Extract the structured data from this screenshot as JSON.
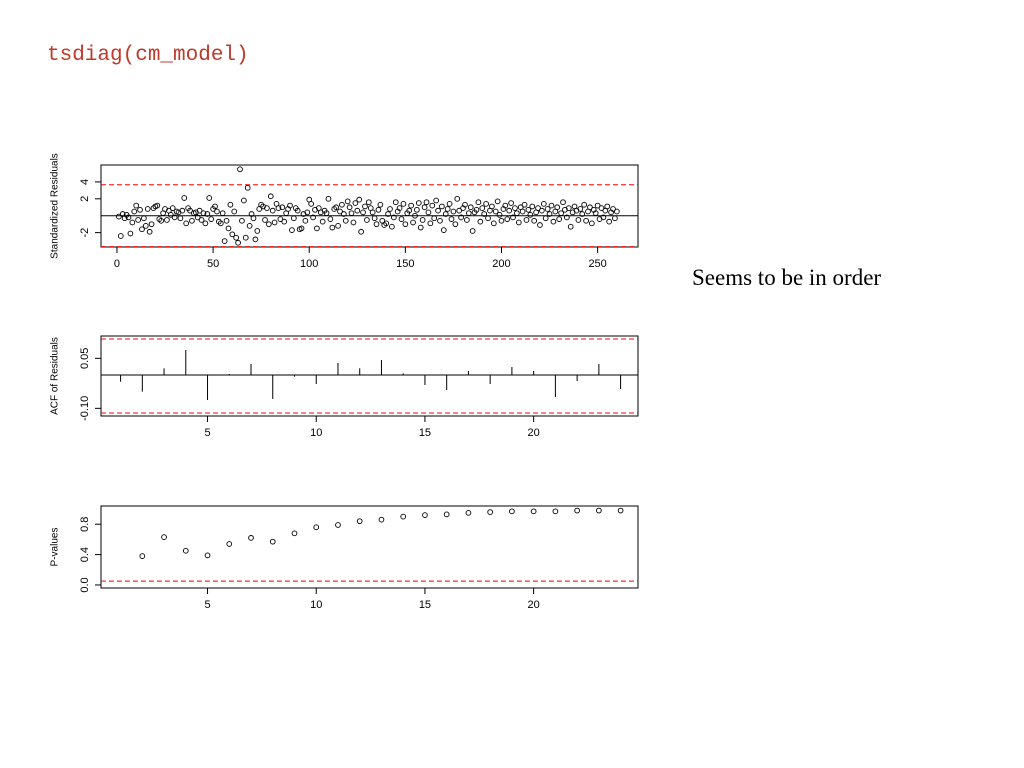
{
  "title": "tsdiag(cm_model)",
  "note": "Seems to be in order",
  "chart_data": [
    {
      "type": "scatter",
      "ylabel": "Standardized Residuals",
      "x": [
        1,
        2,
        3,
        4,
        5,
        6,
        7,
        8,
        9,
        10,
        11,
        12,
        13,
        14,
        15,
        16,
        17,
        18,
        19,
        20,
        21,
        22,
        23,
        24,
        25,
        26,
        27,
        28,
        29,
        30,
        31,
        32,
        33,
        34,
        35,
        36,
        37,
        38,
        39,
        40,
        41,
        42,
        43,
        44,
        45,
        46,
        47,
        48,
        49,
        50,
        51,
        52,
        53,
        54,
        55,
        56,
        57,
        58,
        59,
        60,
        61,
        62,
        63,
        64,
        65,
        66,
        67,
        68,
        69,
        70,
        71,
        72,
        73,
        74,
        75,
        76,
        77,
        78,
        79,
        80,
        81,
        82,
        83,
        84,
        85,
        86,
        87,
        88,
        89,
        90,
        91,
        92,
        93,
        94,
        95,
        96,
        97,
        98,
        99,
        100,
        101,
        102,
        103,
        104,
        105,
        106,
        107,
        108,
        109,
        110,
        111,
        112,
        113,
        114,
        115,
        116,
        117,
        118,
        119,
        120,
        121,
        122,
        123,
        124,
        125,
        126,
        127,
        128,
        129,
        130,
        131,
        132,
        133,
        134,
        135,
        136,
        137,
        138,
        139,
        140,
        141,
        142,
        143,
        144,
        145,
        146,
        147,
        148,
        149,
        150,
        151,
        152,
        153,
        154,
        155,
        156,
        157,
        158,
        159,
        160,
        161,
        162,
        163,
        164,
        165,
        166,
        167,
        168,
        169,
        170,
        171,
        172,
        173,
        174,
        175,
        176,
        177,
        178,
        179,
        180,
        181,
        182,
        183,
        184,
        185,
        186,
        187,
        188,
        189,
        190,
        191,
        192,
        193,
        194,
        195,
        196,
        197,
        198,
        199,
        200,
        201,
        202,
        203,
        204,
        205,
        206,
        207,
        208,
        209,
        210,
        211,
        212,
        213,
        214,
        215,
        216,
        217,
        218,
        219,
        220,
        221,
        222,
        223,
        224,
        225,
        226,
        227,
        228,
        229,
        230,
        231,
        232,
        233,
        234,
        235,
        236,
        237,
        238,
        239,
        240,
        241,
        242,
        243,
        244,
        245,
        246,
        247,
        248,
        249,
        250,
        251,
        252,
        253,
        254,
        255,
        256,
        257,
        258,
        259,
        260
      ],
      "values": [
        -0.1,
        -2.4,
        0.2,
        -0.3,
        0.1,
        -0.2,
        -2.1,
        -0.8,
        0.5,
        1.2,
        -0.5,
        0.7,
        -1.6,
        -0.3,
        -1.2,
        0.8,
        -1.9,
        -1.0,
        0.9,
        1.1,
        1.2,
        -0.4,
        -0.6,
        0.3,
        0.8,
        -0.5,
        0.6,
        0.1,
        0.9,
        -0.2,
        0.5,
        0.4,
        -0.3,
        0.6,
        2.1,
        -0.9,
        0.9,
        0.6,
        -0.6,
        0.3,
        0.4,
        -0.2,
        0.6,
        -0.5,
        0.3,
        -0.9,
        0.2,
        2.1,
        -0.4,
        0.8,
        1.1,
        0.5,
        -0.7,
        -0.9,
        0.3,
        -3.0,
        -0.6,
        -1.5,
        1.3,
        -2.2,
        0.5,
        -2.6,
        -3.2,
        5.5,
        -0.6,
        1.8,
        -2.6,
        3.3,
        -1.2,
        0.2,
        -0.3,
        -2.8,
        -1.8,
        0.8,
        1.3,
        1.1,
        -0.5,
        0.9,
        -1.0,
        2.3,
        0.6,
        -0.8,
        1.4,
        0.9,
        -0.4,
        1.0,
        -0.7,
        0.3,
        0.8,
        1.2,
        -1.7,
        -0.3,
        0.9,
        0.6,
        -1.6,
        -1.5,
        0.2,
        -0.6,
        0.4,
        1.9,
        1.4,
        -0.2,
        0.7,
        -1.5,
        0.9,
        0.4,
        -0.7,
        0.6,
        0.3,
        2.0,
        -0.4,
        -1.4,
        0.8,
        1.0,
        -1.2,
        0.5,
        1.3,
        0.2,
        -0.6,
        1.7,
        1.0,
        0.3,
        -0.8,
        1.5,
        0.6,
        1.9,
        -1.9,
        0.4,
        1.1,
        -0.5,
        1.6,
        0.9,
        0.4,
        -0.3,
        -1.0,
        0.7,
        1.3,
        -0.6,
        -1.1,
        -0.9,
        0.2,
        0.8,
        -1.3,
        -0.2,
        1.6,
        0.5,
        0.9,
        -0.4,
        1.4,
        -1.0,
        0.3,
        0.6,
        1.2,
        -0.8,
        0.0,
        0.7,
        1.5,
        -1.4,
        -0.5,
        1.0,
        1.6,
        0.4,
        -0.9,
        1.2,
        -0.3,
        1.8,
        0.6,
        -0.6,
        1.1,
        -1.7,
        0.2,
        0.8,
        1.4,
        -0.4,
        0.5,
        -1.0,
        2.0,
        0.6,
        -0.2,
        0.9,
        1.3,
        -0.5,
        0.3,
        1.0,
        -1.8,
        0.4,
        0.7,
        1.6,
        -0.7,
        0.9,
        0.2,
        1.4,
        -0.3,
        0.6,
        1.1,
        -0.9,
        0.5,
        1.7,
        0.1,
        -0.6,
        0.8,
        1.2,
        -0.4,
        0.6,
        1.5,
        -0.2,
        0.9,
        0.3,
        -0.8,
        1.0,
        0.5,
        1.3,
        -0.5,
        0.7,
        0.1,
        1.1,
        -0.6,
        0.4,
        0.9,
        -1.1,
        0.6,
        1.4,
        -0.3,
        0.8,
        0.2,
        1.2,
        -0.7,
        0.5,
        1.0,
        -0.4,
        0.3,
        1.6,
        0.7,
        -0.2,
        0.9,
        -1.3,
        0.4,
        1.1,
        0.6,
        -0.5,
        0.8,
        0.2,
        1.3,
        -0.6,
        0.5,
        1.0,
        -0.9,
        0.7,
        0.3,
        1.2,
        -0.4,
        0.9,
        -0.2,
        0.6,
        1.1,
        -0.7,
        0.4,
        0.8,
        -0.3,
        0.5
      ],
      "xlim": [
        -8.3,
        271
      ],
      "xticks": [
        0,
        50,
        100,
        150,
        200,
        250
      ],
      "ylim": [
        -3.7,
        6.0
      ],
      "yticks": [
        -2,
        2,
        4
      ],
      "zero_line": 0,
      "ref_lines": [
        3.66,
        -3.66
      ],
      "ref_color": "#ff0000",
      "color": "#000000"
    },
    {
      "type": "stem",
      "ylabel": "ACF of Residuals",
      "x": [
        1,
        2,
        3,
        4,
        5,
        6,
        7,
        8,
        9,
        10,
        11,
        12,
        13,
        14,
        15,
        16,
        17,
        18,
        19,
        20,
        21,
        22,
        23,
        24
      ],
      "values": [
        -0.02,
        -0.05,
        0.02,
        0.075,
        -0.075,
        0.003,
        0.033,
        -0.072,
        -0.005,
        -0.027,
        0.036,
        0.02,
        0.045,
        0.005,
        -0.03,
        -0.045,
        0.012,
        -0.027,
        0.024,
        0.012,
        -0.066,
        -0.018,
        0.033,
        -0.042
      ],
      "xlim": [
        0.1,
        24.8
      ],
      "xticks": [
        5,
        10,
        15,
        20
      ],
      "ylim": [
        -0.123,
        0.117
      ],
      "yticks": [
        {
          "value": -0.1,
          "label": "-0.10"
        },
        {
          "value": 0.05,
          "label": "0.05"
        }
      ],
      "zero_line": 0,
      "ref_lines": [
        0.108,
        -0.114
      ],
      "ref_color": "#ff0000",
      "color": "#000000"
    },
    {
      "type": "scatter",
      "ylabel": "P-values",
      "x": [
        2,
        3,
        4,
        5,
        6,
        7,
        8,
        9,
        10,
        11,
        12,
        13,
        14,
        15,
        16,
        17,
        18,
        19,
        20,
        21,
        22,
        23,
        24
      ],
      "values": [
        0.38,
        0.63,
        0.45,
        0.39,
        0.54,
        0.62,
        0.57,
        0.68,
        0.76,
        0.79,
        0.84,
        0.86,
        0.9,
        0.92,
        0.93,
        0.95,
        0.96,
        0.97,
        0.97,
        0.97,
        0.98,
        0.98,
        0.98
      ],
      "xlim": [
        0.1,
        24.8
      ],
      "xticks": [
        5,
        10,
        15,
        20
      ],
      "ylim": [
        -0.04,
        1.04
      ],
      "yticks": [
        {
          "value": 0,
          "label": "0.0"
        },
        {
          "value": 0.4,
          "label": "0.4"
        },
        {
          "value": 0.8,
          "label": "0.8"
        }
      ],
      "ref_lines": [
        0.05
      ],
      "ref_color": "#ff0000",
      "color": "#000000"
    }
  ]
}
